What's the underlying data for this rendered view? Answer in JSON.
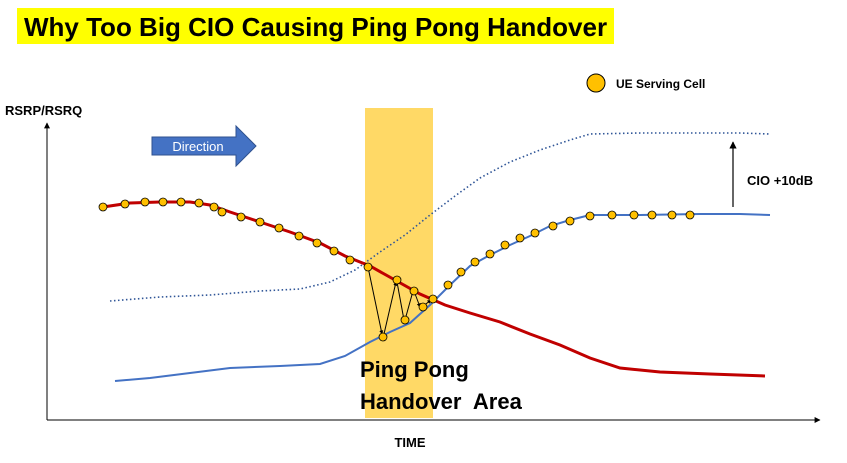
{
  "title": "Why Too Big CIO Causing Ping Pong Handover",
  "legend": {
    "label": "UE Serving Cell"
  },
  "axes": {
    "y_label": "RSRP/RSRQ",
    "x_label": "TIME"
  },
  "direction_arrow": {
    "label": "Direction"
  },
  "cio_annotation": {
    "label": "CIO +10dB"
  },
  "pingpong_area": {
    "line1": "Ping Pong",
    "line2": "Handover  Area"
  },
  "colors": {
    "highlight": "#ffff00",
    "serving_cell_marker": "#ffc000",
    "source_cell_line": "#c00000",
    "target_cell_line": "#4472c4",
    "pingpong_band": "#ffd966",
    "direction_arrow": "#4472c4"
  }
}
